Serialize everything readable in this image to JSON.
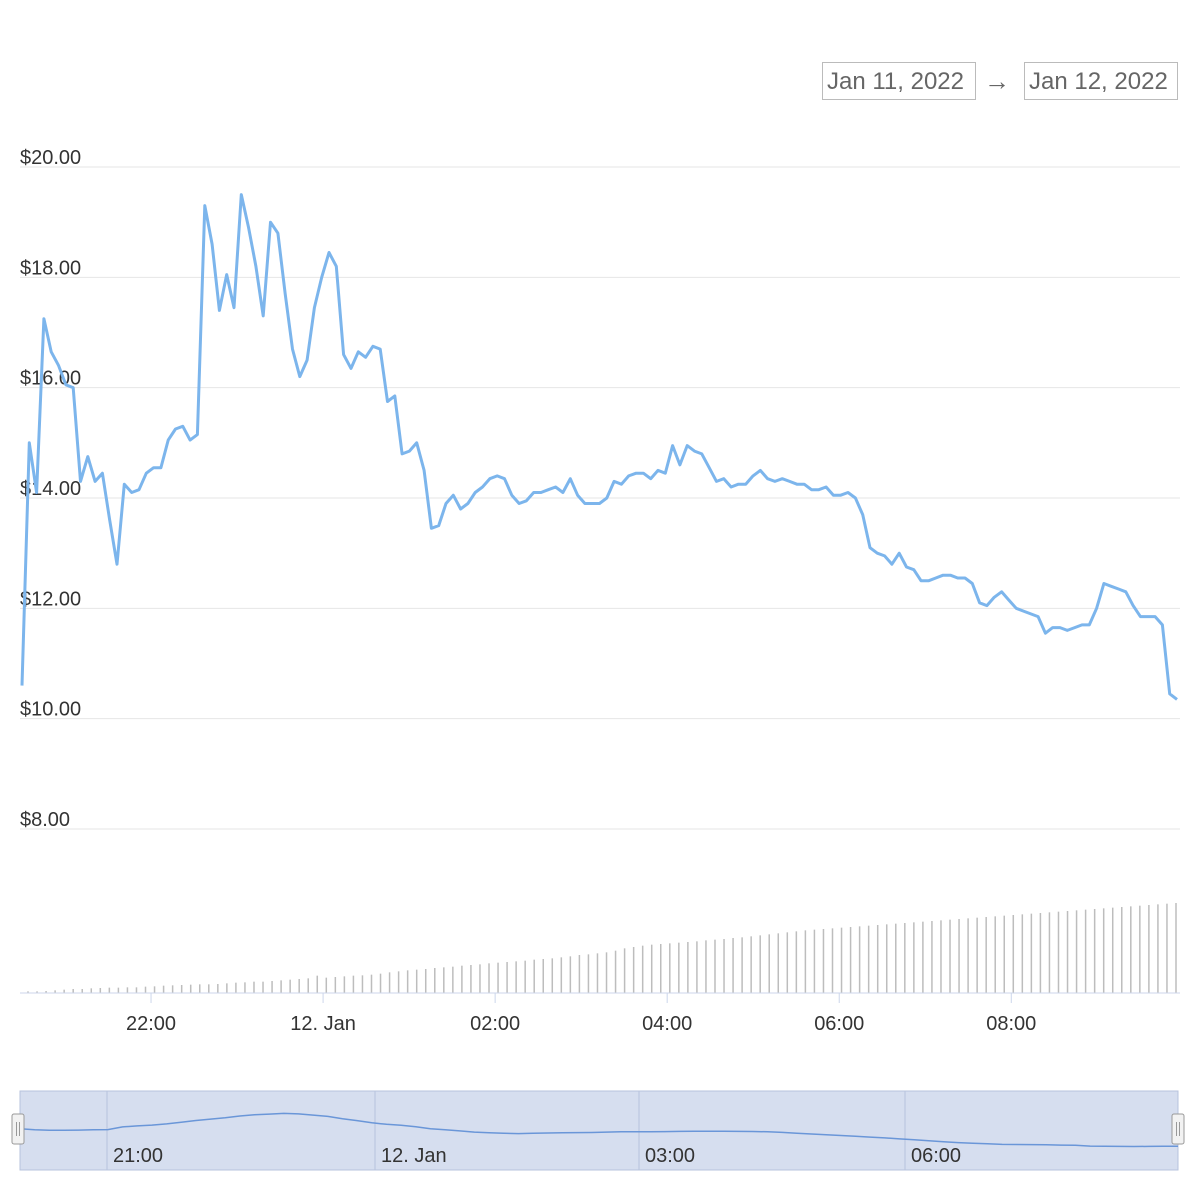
{
  "range_selector": {
    "from": "Jan 11, 2022",
    "arrow": "→",
    "to": "Jan 12, 2022"
  },
  "colors": {
    "line": "#7cb5ec",
    "volume": "#bdbdbd",
    "grid": "#e6e6e6",
    "navigator_fill": "#d6deef",
    "navigator_line": "#6a96d8"
  },
  "chart_data": {
    "type": "line",
    "title": "",
    "xlabel": "",
    "ylabel": "",
    "ylim": [
      8,
      20
    ],
    "y_ticks": [
      {
        "value": 20,
        "label": "$20.00"
      },
      {
        "value": 18,
        "label": "$18.00"
      },
      {
        "value": 16,
        "label": "$16.00"
      },
      {
        "value": 14,
        "label": "$14.00"
      },
      {
        "value": 12,
        "label": "$12.00"
      },
      {
        "value": 10,
        "label": "$10.00"
      },
      {
        "value": 8,
        "label": "$8.00"
      }
    ],
    "x_start": "Jan 11, 2022 20:00",
    "x_end": "Jan 12, 2022 08:45",
    "x_ticks": [
      {
        "time": "2022-01-11 22:00",
        "label": "22:00"
      },
      {
        "time": "2022-01-12 00:00",
        "label": "12. Jan"
      },
      {
        "time": "2022-01-12 02:00",
        "label": "02:00"
      },
      {
        "time": "2022-01-12 04:00",
        "label": "04:00"
      },
      {
        "time": "2022-01-12 06:00",
        "label": "06:00"
      },
      {
        "time": "2022-01-12 08:00",
        "label": "08:00"
      }
    ],
    "grid": true,
    "legend": "none",
    "series": [
      {
        "values": [
          [
            0,
            10.6
          ],
          [
            5,
            15.0
          ],
          [
            10,
            14.1
          ],
          [
            15,
            17.25
          ],
          [
            20,
            16.65
          ],
          [
            25,
            16.4
          ],
          [
            30,
            16.05
          ],
          [
            35,
            16.0
          ],
          [
            40,
            14.3
          ],
          [
            45,
            14.75
          ],
          [
            50,
            14.3
          ],
          [
            55,
            14.45
          ],
          [
            60,
            13.6
          ],
          [
            65,
            12.8
          ],
          [
            70,
            14.25
          ],
          [
            75,
            14.1
          ],
          [
            80,
            14.15
          ],
          [
            85,
            14.45
          ],
          [
            90,
            14.55
          ],
          [
            95,
            14.55
          ],
          [
            100,
            15.05
          ],
          [
            105,
            15.25
          ],
          [
            110,
            15.3
          ],
          [
            115,
            15.05
          ],
          [
            120,
            15.15
          ],
          [
            125,
            19.3
          ],
          [
            130,
            18.6
          ],
          [
            135,
            17.4
          ],
          [
            140,
            18.05
          ],
          [
            145,
            17.45
          ],
          [
            150,
            19.5
          ],
          [
            155,
            18.9
          ],
          [
            160,
            18.2
          ],
          [
            165,
            17.3
          ],
          [
            170,
            19.0
          ],
          [
            175,
            18.8
          ],
          [
            180,
            17.7
          ],
          [
            185,
            16.7
          ],
          [
            190,
            16.2
          ],
          [
            195,
            16.5
          ],
          [
            200,
            17.45
          ],
          [
            205,
            18.0
          ],
          [
            210,
            18.45
          ],
          [
            215,
            18.2
          ],
          [
            220,
            16.6
          ],
          [
            225,
            16.35
          ],
          [
            230,
            16.65
          ],
          [
            235,
            16.55
          ],
          [
            240,
            16.75
          ],
          [
            245,
            16.7
          ],
          [
            250,
            15.75
          ],
          [
            255,
            15.85
          ],
          [
            260,
            14.8
          ],
          [
            265,
            14.85
          ],
          [
            270,
            15.0
          ],
          [
            275,
            14.5
          ],
          [
            280,
            13.45
          ],
          [
            285,
            13.5
          ],
          [
            290,
            13.9
          ],
          [
            295,
            14.05
          ],
          [
            300,
            13.8
          ],
          [
            305,
            13.9
          ],
          [
            310,
            14.1
          ],
          [
            315,
            14.2
          ],
          [
            320,
            14.35
          ],
          [
            325,
            14.4
          ],
          [
            330,
            14.35
          ],
          [
            335,
            14.05
          ],
          [
            340,
            13.9
          ],
          [
            345,
            13.95
          ],
          [
            350,
            14.1
          ],
          [
            355,
            14.1
          ],
          [
            360,
            14.15
          ],
          [
            365,
            14.2
          ],
          [
            370,
            14.1
          ],
          [
            375,
            14.35
          ],
          [
            380,
            14.05
          ],
          [
            385,
            13.9
          ],
          [
            390,
            13.9
          ],
          [
            395,
            13.9
          ],
          [
            400,
            14.0
          ],
          [
            405,
            14.3
          ],
          [
            410,
            14.25
          ],
          [
            415,
            14.4
          ],
          [
            420,
            14.45
          ],
          [
            425,
            14.45
          ],
          [
            430,
            14.35
          ],
          [
            435,
            14.5
          ],
          [
            440,
            14.45
          ],
          [
            445,
            14.95
          ],
          [
            450,
            14.6
          ],
          [
            455,
            14.95
          ],
          [
            460,
            14.85
          ],
          [
            465,
            14.8
          ],
          [
            470,
            14.55
          ],
          [
            475,
            14.3
          ],
          [
            480,
            14.35
          ],
          [
            485,
            14.2
          ],
          [
            490,
            14.25
          ],
          [
            495,
            14.25
          ],
          [
            500,
            14.4
          ],
          [
            505,
            14.5
          ],
          [
            510,
            14.35
          ],
          [
            515,
            14.3
          ],
          [
            520,
            14.35
          ],
          [
            525,
            14.3
          ],
          [
            530,
            14.25
          ],
          [
            535,
            14.25
          ],
          [
            540,
            14.15
          ],
          [
            545,
            14.15
          ],
          [
            550,
            14.2
          ],
          [
            555,
            14.05
          ],
          [
            560,
            14.05
          ],
          [
            565,
            14.1
          ],
          [
            570,
            14.0
          ],
          [
            575,
            13.7
          ],
          [
            580,
            13.1
          ],
          [
            585,
            13.0
          ],
          [
            590,
            12.95
          ],
          [
            595,
            12.8
          ],
          [
            600,
            13.0
          ],
          [
            605,
            12.75
          ],
          [
            610,
            12.7
          ],
          [
            615,
            12.5
          ],
          [
            620,
            12.5
          ],
          [
            625,
            12.55
          ],
          [
            630,
            12.6
          ],
          [
            635,
            12.6
          ],
          [
            640,
            12.55
          ],
          [
            645,
            12.55
          ],
          [
            650,
            12.45
          ],
          [
            655,
            12.1
          ],
          [
            660,
            12.05
          ],
          [
            665,
            12.2
          ],
          [
            670,
            12.3
          ],
          [
            675,
            12.15
          ],
          [
            680,
            12.0
          ],
          [
            685,
            11.95
          ],
          [
            690,
            11.9
          ],
          [
            695,
            11.85
          ],
          [
            700,
            11.55
          ],
          [
            705,
            11.65
          ],
          [
            710,
            11.65
          ],
          [
            715,
            11.6
          ],
          [
            720,
            11.65
          ],
          [
            725,
            11.7
          ],
          [
            730,
            11.7
          ],
          [
            735,
            12.0
          ],
          [
            740,
            12.45
          ],
          [
            745,
            12.4
          ],
          [
            750,
            12.35
          ],
          [
            755,
            12.3
          ],
          [
            760,
            12.05
          ],
          [
            765,
            11.85
          ],
          [
            770,
            11.85
          ],
          [
            775,
            11.85
          ],
          [
            780,
            11.7
          ],
          [
            785,
            10.45
          ],
          [
            790,
            10.35
          ]
        ]
      }
    ],
    "volume_bars": [
      0.5,
      0.5,
      0.6,
      0.8,
      1.0,
      1.2,
      1.2,
      1.4,
      1.5,
      1.6,
      1.6,
      1.7,
      1.7,
      1.9,
      2.0,
      2.2,
      2.3,
      2.4,
      2.5,
      2.6,
      2.6,
      2.7,
      2.9,
      3.1,
      3.2,
      3.4,
      3.4,
      3.6,
      3.8,
      4.0,
      4.2,
      4.4,
      5.2,
      4.6,
      4.8,
      5.0,
      5.2,
      5.3,
      5.5,
      5.8,
      6.2,
      6.5,
      6.8,
      7.0,
      7.2,
      7.5,
      7.7,
      7.9,
      8.2,
      8.4,
      8.6,
      8.9,
      9.1,
      9.3,
      9.5,
      9.7,
      10.0,
      10.2,
      10.4,
      10.7,
      11.0,
      11.4,
      11.6,
      11.9,
      12.2,
      12.7,
      13.4,
      13.8,
      14.2,
      14.5,
      14.7,
      14.9,
      15.1,
      15.3,
      15.5,
      15.8,
      16.0,
      16.2,
      16.5,
      16.7,
      17.0,
      17.3,
      17.6,
      17.9,
      18.2,
      18.5,
      18.8,
      19.0,
      19.2,
      19.4,
      19.6,
      19.8,
      20.0,
      20.2,
      20.4,
      20.6,
      20.8,
      21.0,
      21.2,
      21.4,
      21.6,
      21.8,
      22.0,
      22.2,
      22.4,
      22.6,
      22.8,
      23.0,
      23.2,
      23.4,
      23.6,
      23.8,
      24.0,
      24.2,
      24.4,
      24.6,
      24.8,
      25.0,
      25.2,
      25.4,
      25.6,
      25.8,
      26.0,
      26.2,
      26.4,
      26.6,
      26.8,
      27.0
    ],
    "navigator": {
      "x_ticks": [
        "21:00",
        "12. Jan",
        "03:00",
        "06:00"
      ]
    }
  }
}
